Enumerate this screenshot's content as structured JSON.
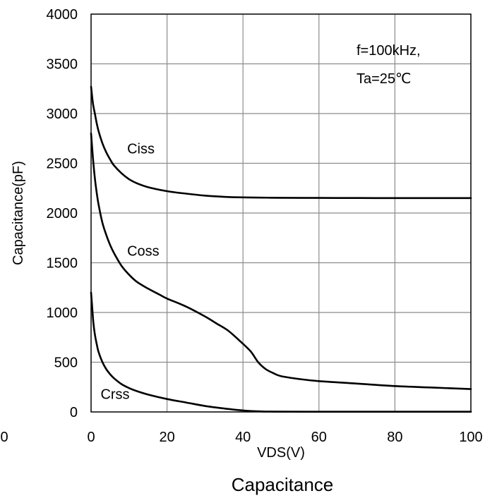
{
  "chart_data": {
    "type": "line",
    "caption": "Capacitance",
    "xlabel": "VDS(V)",
    "ylabel": "Capacitance(pF)",
    "xlim": [
      0,
      100
    ],
    "ylim": [
      0,
      4000
    ],
    "x_ticks": [
      0,
      20,
      40,
      60,
      80,
      100
    ],
    "y_ticks": [
      0,
      500,
      1000,
      1500,
      2000,
      2500,
      3000,
      3500,
      4000
    ],
    "stray_left_tick": "0",
    "grid": true,
    "annotation": [
      "f=100kHz,",
      "Ta=25℃"
    ],
    "series": [
      {
        "name": "Ciss",
        "label_at": [
          9.5,
          2600
        ],
        "x": [
          0,
          0.5,
          1,
          1.5,
          2,
          3,
          4,
          5,
          6,
          8,
          10,
          12,
          15,
          20,
          25,
          30,
          35,
          40,
          45,
          50,
          60,
          70,
          80,
          90,
          100
        ],
        "values": [
          3270,
          3100,
          3000,
          2900,
          2820,
          2700,
          2610,
          2540,
          2480,
          2400,
          2340,
          2300,
          2260,
          2220,
          2195,
          2175,
          2163,
          2157,
          2155,
          2153,
          2152,
          2151,
          2150,
          2150,
          2150
        ]
      },
      {
        "name": "Coss",
        "label_at": [
          9.5,
          1570
        ],
        "x": [
          0,
          0.5,
          1,
          1.5,
          2,
          3,
          4,
          5,
          6,
          8,
          10,
          12,
          15,
          18,
          20,
          25,
          30,
          33,
          36,
          39,
          42,
          44,
          46,
          48,
          50,
          55,
          60,
          70,
          80,
          90,
          100
        ],
        "values": [
          2800,
          2550,
          2350,
          2200,
          2080,
          1900,
          1780,
          1680,
          1600,
          1470,
          1380,
          1310,
          1240,
          1180,
          1140,
          1060,
          960,
          890,
          820,
          720,
          610,
          500,
          430,
          390,
          360,
          330,
          310,
          285,
          260,
          245,
          230
        ]
      },
      {
        "name": "Crss",
        "label_at": [
          2.5,
          130
        ],
        "x": [
          0,
          0.3,
          0.6,
          1,
          1.5,
          2,
          3,
          4,
          5,
          6,
          8,
          10,
          12,
          15,
          20,
          25,
          30,
          35,
          40,
          45,
          50,
          60,
          70,
          80,
          90,
          100
        ],
        "values": [
          1200,
          1050,
          900,
          780,
          680,
          600,
          500,
          430,
          380,
          340,
          280,
          240,
          210,
          175,
          130,
          95,
          60,
          35,
          15,
          5,
          3,
          2,
          2,
          2,
          2,
          2
        ]
      }
    ]
  }
}
